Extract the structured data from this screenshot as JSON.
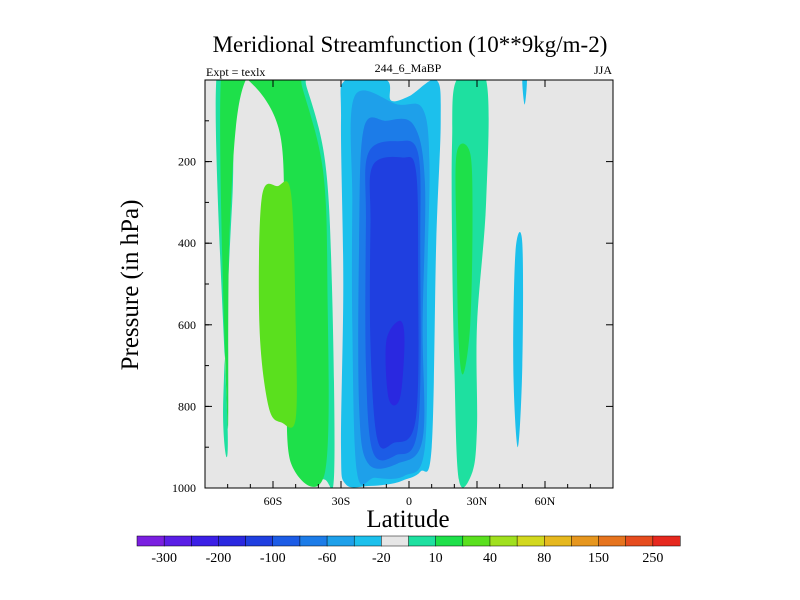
{
  "chart_data": {
    "type": "contour",
    "title": "Meridional Streamfunction (10**9kg/m-2)",
    "left_label": "Expt = texlx",
    "center_label": "244_6_MaBP",
    "right_label": "JJA",
    "xlabel": "Latitude",
    "ylabel": "Pressure (in hPa)",
    "xlim": [
      -90,
      90
    ],
    "ylim": [
      1000,
      0
    ],
    "x_ticks": [
      {
        "value": -60,
        "label": "60S"
      },
      {
        "value": -30,
        "label": "30S"
      },
      {
        "value": 0,
        "label": "0"
      },
      {
        "value": 30,
        "label": "30N"
      },
      {
        "value": 60,
        "label": "60N"
      }
    ],
    "y_ticks": [
      {
        "value": 200,
        "label": "200"
      },
      {
        "value": 400,
        "label": "400"
      },
      {
        "value": 600,
        "label": "600"
      },
      {
        "value": 800,
        "label": "800"
      },
      {
        "value": 1000,
        "label": "1000"
      }
    ],
    "colorbar": {
      "colors": [
        "#7a1fe0",
        "#5a1ee6",
        "#3b1fe6",
        "#2a28e0",
        "#1f3fe0",
        "#1c5ce6",
        "#1c7ce8",
        "#1ea0ea",
        "#1cc0ec",
        "#e6e6e6",
        "#1ee0a0",
        "#1ee04a",
        "#5ae01e",
        "#a0e01e",
        "#d2d81e",
        "#e6b81e",
        "#e6961e",
        "#e6741e",
        "#e64c1e",
        "#e6281e"
      ],
      "labels": [
        {
          "boundary": 1,
          "text": "-300"
        },
        {
          "boundary": 3,
          "text": "-200"
        },
        {
          "boundary": 5,
          "text": "-100"
        },
        {
          "boundary": 7,
          "text": "-60"
        },
        {
          "boundary": 9,
          "text": "-20"
        },
        {
          "boundary": 11,
          "text": "10"
        },
        {
          "boundary": 13,
          "text": "40"
        },
        {
          "boundary": 15,
          "text": "80"
        },
        {
          "boundary": 17,
          "text": "150"
        },
        {
          "boundary": 19,
          "text": "250"
        }
      ]
    },
    "fields": [
      {
        "name": "sh-positive-cell",
        "level": 20,
        "color": "#1ee0a0",
        "points": [
          [
            -85,
            0
          ],
          [
            -70,
            0
          ],
          [
            -55,
            120
          ],
          [
            -53,
            350
          ],
          [
            -52,
            700
          ],
          [
            -47,
            930
          ],
          [
            -37,
            980
          ],
          [
            -33,
            960
          ],
          [
            -34,
            500
          ],
          [
            -37,
            200
          ],
          [
            -45,
            20
          ],
          [
            -48,
            0
          ],
          [
            -74,
            0
          ],
          [
            -78,
            300
          ],
          [
            -82,
            800
          ],
          [
            -80,
            860
          ]
        ]
      },
      {
        "name": "sh-positive-core",
        "level": 40,
        "color": "#1ee04a",
        "points": [
          [
            -83,
            0
          ],
          [
            -71,
            0
          ],
          [
            -57,
            130
          ],
          [
            -55,
            400
          ],
          [
            -54,
            700
          ],
          [
            -52,
            940
          ],
          [
            -37,
            960
          ],
          [
            -36,
            500
          ],
          [
            -38,
            220
          ],
          [
            -47,
            20
          ],
          [
            -49,
            0
          ],
          [
            -72,
            0
          ],
          [
            -79,
            350
          ],
          [
            -80,
            850
          ]
        ]
      },
      {
        "name": "sh-positive-max",
        "level": 60,
        "color": "#5ae01e",
        "points": [
          [
            -65,
            290
          ],
          [
            -58,
            260
          ],
          [
            -52,
            280
          ],
          [
            -50,
            600
          ],
          [
            -50,
            830
          ],
          [
            -56,
            840
          ],
          [
            -62,
            800
          ],
          [
            -66,
            600
          ]
        ]
      },
      {
        "name": "equatorial-negative-outer",
        "level": -20,
        "color": "#1cc0ec",
        "points": [
          [
            -28,
            0
          ],
          [
            -10,
            0
          ],
          [
            -8,
            50
          ],
          [
            0,
            40
          ],
          [
            12,
            0
          ],
          [
            14,
            100
          ],
          [
            12,
            400
          ],
          [
            10,
            900
          ],
          [
            5,
            960
          ],
          [
            -2,
            980
          ],
          [
            -8,
            990
          ],
          [
            -18,
            995
          ],
          [
            -28,
            990
          ],
          [
            -30,
            900
          ],
          [
            -29,
            500
          ],
          [
            -30,
            100
          ]
        ]
      },
      {
        "name": "equatorial-negative-2",
        "level": -40,
        "color": "#1ea0ea",
        "points": [
          [
            -24,
            40
          ],
          [
            -5,
            60
          ],
          [
            6,
            70
          ],
          [
            9,
            200
          ],
          [
            8,
            500
          ],
          [
            7,
            900
          ],
          [
            -2,
            970
          ],
          [
            -15,
            975
          ],
          [
            -23,
            960
          ],
          [
            -25,
            600
          ],
          [
            -25,
            300
          ]
        ]
      },
      {
        "name": "equatorial-negative-3",
        "level": -60,
        "color": "#1c7ce8",
        "points": [
          [
            -20,
            120
          ],
          [
            -10,
            100
          ],
          [
            2,
            110
          ],
          [
            7,
            250
          ],
          [
            6,
            600
          ],
          [
            6,
            880
          ],
          [
            -5,
            940
          ],
          [
            -18,
            940
          ],
          [
            -22,
            800
          ],
          [
            -22,
            400
          ]
        ]
      },
      {
        "name": "equatorial-negative-4",
        "level": -80,
        "color": "#1c5ce6",
        "points": [
          [
            -18,
            180
          ],
          [
            -5,
            150
          ],
          [
            4,
            180
          ],
          [
            5,
            400
          ],
          [
            4,
            850
          ],
          [
            -6,
            920
          ],
          [
            -16,
            910
          ],
          [
            -19,
            700
          ],
          [
            -19,
            350
          ]
        ]
      },
      {
        "name": "equatorial-negative-5",
        "level": -100,
        "color": "#1f3fe0",
        "points": [
          [
            -16,
            210
          ],
          [
            -3,
            190
          ],
          [
            3,
            220
          ],
          [
            4,
            450
          ],
          [
            3,
            830
          ],
          [
            -7,
            890
          ],
          [
            -14,
            880
          ],
          [
            -17,
            650
          ],
          [
            -17,
            350
          ]
        ]
      },
      {
        "name": "equatorial-negative-core",
        "level": -120,
        "color": "#2a28e0",
        "points": [
          [
            -10,
            640
          ],
          [
            -4,
            590
          ],
          [
            -2,
            640
          ],
          [
            -4,
            780
          ],
          [
            -9,
            780
          ]
        ]
      },
      {
        "name": "nh-positive-cell",
        "level": 20,
        "color": "#1ee0a0",
        "points": [
          [
            21,
            0
          ],
          [
            34,
            0
          ],
          [
            34,
            300
          ],
          [
            30,
            600
          ],
          [
            30,
            850
          ],
          [
            28,
            960
          ],
          [
            22,
            980
          ],
          [
            20,
            700
          ],
          [
            19,
            400
          ],
          [
            19,
            150
          ]
        ]
      },
      {
        "name": "nh-positive-core",
        "level": 40,
        "color": "#1ee04a",
        "points": [
          [
            21,
            180
          ],
          [
            27,
            180
          ],
          [
            28,
            350
          ],
          [
            27,
            600
          ],
          [
            24,
            720
          ],
          [
            22,
            650
          ],
          [
            21,
            400
          ]
        ]
      },
      {
        "name": "nh-weak-negative-thin",
        "level": -20,
        "color": "#1cc0ec",
        "points": [
          [
            50,
            0
          ],
          [
            52,
            0
          ],
          [
            51,
            60
          ]
        ]
      },
      {
        "name": "nh-weak-negative-band",
        "level": -20,
        "color": "#1cc0ec",
        "points": [
          [
            47,
            420
          ],
          [
            50,
            400
          ],
          [
            50,
            700
          ],
          [
            48,
            900
          ],
          [
            46,
            700
          ]
        ]
      }
    ]
  }
}
